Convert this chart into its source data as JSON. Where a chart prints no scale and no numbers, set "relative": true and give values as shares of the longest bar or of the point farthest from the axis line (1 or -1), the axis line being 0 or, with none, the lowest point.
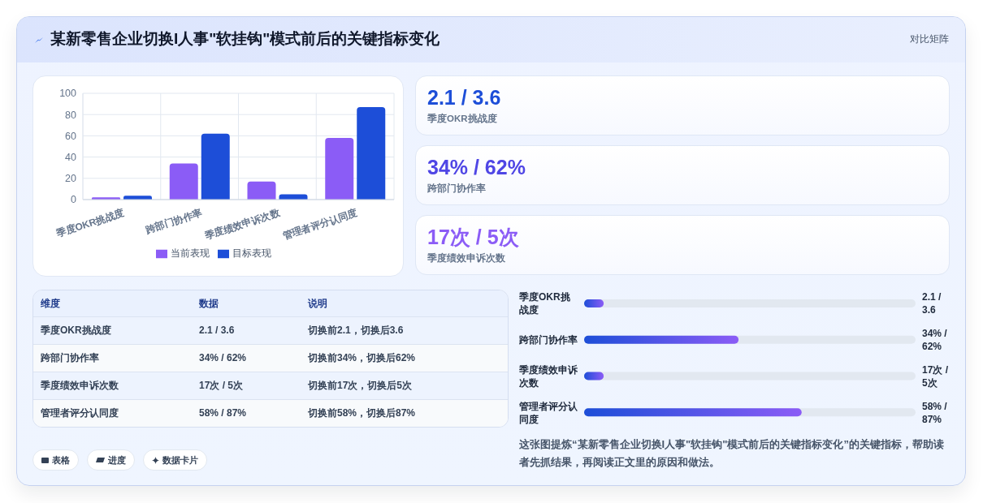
{
  "chart_data": [
    {
      "type": "bar",
      "title": "某新零售企业切换I人事\"软挂钩\"模式前后的关键指标变化",
      "annotations": [
        "对比矩阵",
        "表格",
        "进度",
        "数据卡片"
      ],
      "categories": [
        "季度OKR挑战度",
        "跨部门协作率",
        "季度绩效申诉次数",
        "管理者评分认同度"
      ],
      "series": [
        {
          "name": "当前表现",
          "color": "#8b5cf6",
          "values": [
            2.1,
            34,
            17,
            58
          ]
        },
        {
          "name": "目标表现",
          "color": "#1d4ed8",
          "values": [
            3.6,
            62,
            5,
            87
          ]
        }
      ],
      "ylim": [
        0,
        100
      ],
      "yticks": [
        0,
        20,
        40,
        60,
        80,
        100
      ],
      "grid": true,
      "legend": "bottom"
    },
    {
      "type": "other",
      "annotations": [
        "2.1 / 3.6",
        "季度OKR挑战度",
        "34% / 62%",
        "跨部门协作率",
        "17次 / 5次",
        "季度绩效申诉次数"
      ]
    },
    {
      "type": "other",
      "annotations": [
        "维度",
        "数据",
        "说明",
        "季度OKR挑战度",
        "2.1 / 3.6",
        "切换前2.1，切换后3.6",
        "跨部门协作率",
        "34% / 62%",
        "切换前34%，切换后62%",
        "季度绩效申诉次数",
        "17次 / 5次",
        "切换前17次，切换后5次",
        "管理者评分认同度",
        "58% / 87%",
        "切换前58%，切换后87%"
      ]
    },
    {
      "type": "bar",
      "orientation": "horizontal",
      "relative": true,
      "categories": [
        "季度OKR挑战度",
        "跨部门协作率",
        "季度绩效申诉次数",
        "管理者评分认同度"
      ],
      "y2_categories": [
        "2.1 / 3.6",
        "34% / 62%",
        "17次 / 5次",
        "58% / 87%"
      ],
      "values": [
        0.09,
        0.71,
        0.09,
        1
      ],
      "color": "#1d4ed8",
      "annotations": [
        "这张图提炼“某新零售企业切换I人事\"软挂钩\"模式前后的关键指标变化”的关键指标，帮助读者先抓结果，再阅读正文里的原因和做法。"
      ]
    }
  ]
}
